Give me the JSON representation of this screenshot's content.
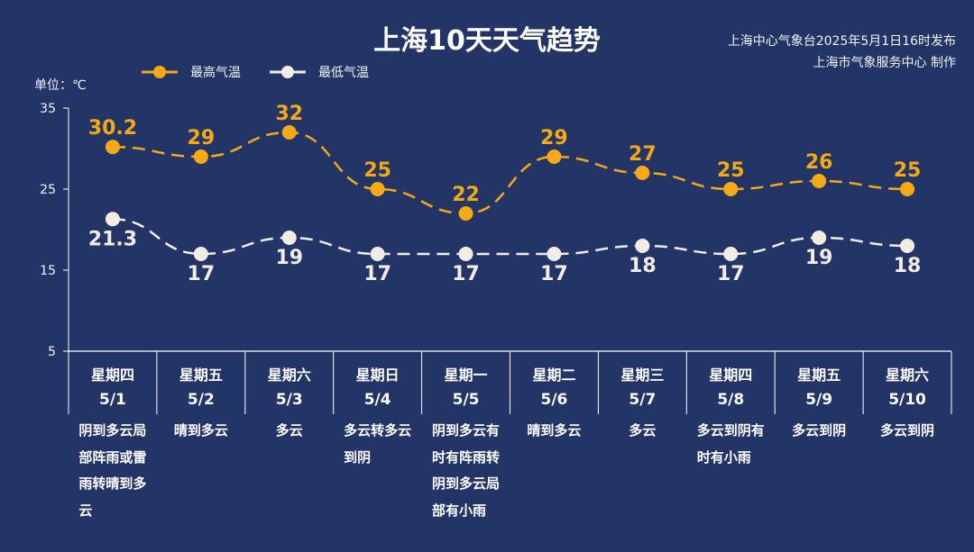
{
  "header": {
    "title": "上海10天天气趋势",
    "publisher_line1": "上海中心气象台2025年5月1日16时发布",
    "publisher_line2": "上海市气象服务中心 制作"
  },
  "legend": {
    "max_label": "最高气温",
    "min_label": "最低气温"
  },
  "unit_label": "单位：℃",
  "colors": {
    "background": "#233466",
    "max_series": "#f5a915",
    "min_series": "#f3ece4",
    "axis": "#ffffff"
  },
  "days": [
    {
      "weekday": "星期四",
      "date": "5/1",
      "condition": "阴到多云局部阵雨或雷雨转晴到多云"
    },
    {
      "weekday": "星期五",
      "date": "5/2",
      "condition": "晴到多云"
    },
    {
      "weekday": "星期六",
      "date": "5/3",
      "condition": "多云"
    },
    {
      "weekday": "星期日",
      "date": "5/4",
      "condition": "多云转多云到阴"
    },
    {
      "weekday": "星期一",
      "date": "5/5",
      "condition": "阴到多云有时有阵雨转阴到多云局部有小雨"
    },
    {
      "weekday": "星期二",
      "date": "5/6",
      "condition": "晴到多云"
    },
    {
      "weekday": "星期三",
      "date": "5/7",
      "condition": "多云"
    },
    {
      "weekday": "星期四",
      "date": "5/8",
      "condition": "多云到阴有时有小雨"
    },
    {
      "weekday": "星期五",
      "date": "5/9",
      "condition": "多云到阴"
    },
    {
      "weekday": "星期六",
      "date": "5/10",
      "condition": "多云到阴"
    }
  ],
  "chart_data": {
    "type": "line",
    "title": "上海10天天气趋势",
    "ylabel": "单位：℃",
    "xlabel": "",
    "categories": [
      "5/1",
      "5/2",
      "5/3",
      "5/4",
      "5/5",
      "5/6",
      "5/7",
      "5/8",
      "5/9",
      "5/10"
    ],
    "series": [
      {
        "name": "最高气温",
        "values": [
          30.2,
          29,
          32,
          25,
          22,
          29,
          27,
          25,
          26,
          25
        ]
      },
      {
        "name": "最低气温",
        "values": [
          21.3,
          17,
          19,
          17,
          17,
          17,
          18,
          17,
          19,
          18
        ]
      }
    ],
    "yticks": [
      5,
      15,
      25,
      35
    ],
    "ylim": [
      5,
      35
    ],
    "grid": false,
    "legend_position": "top-left",
    "line_style": "dashed"
  }
}
